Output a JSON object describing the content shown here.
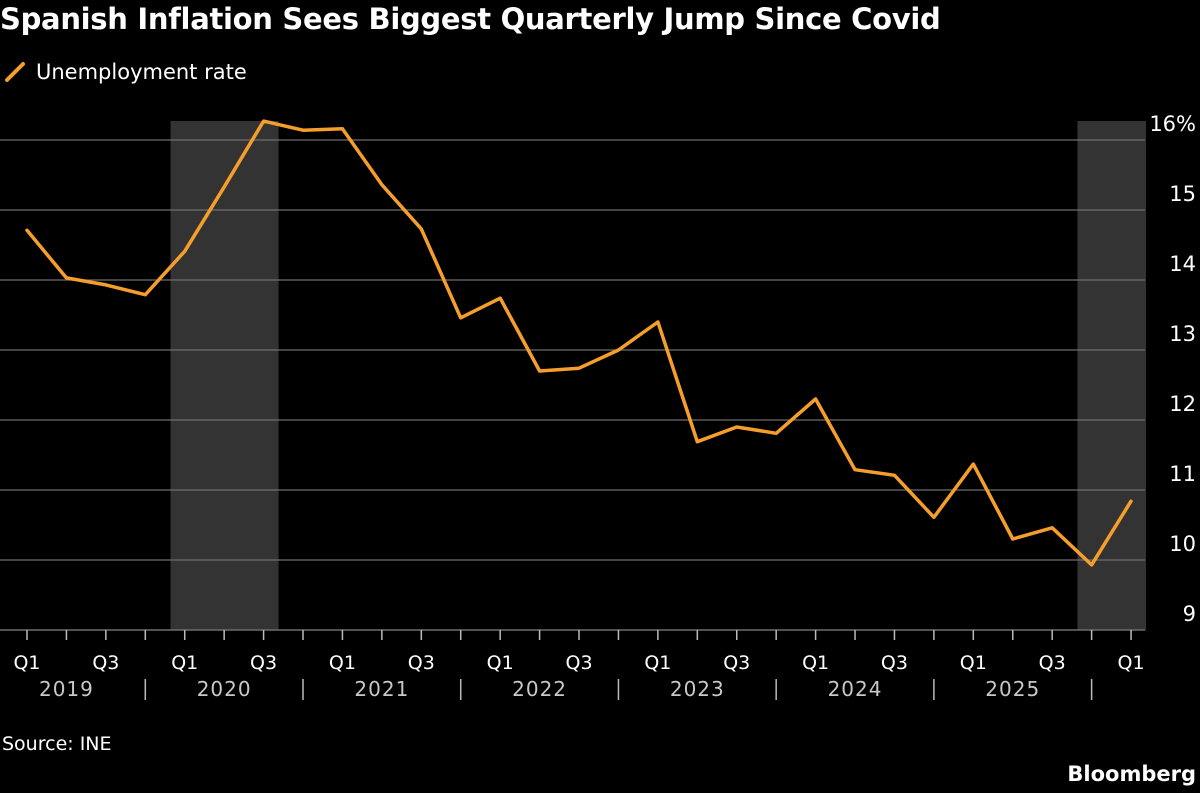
{
  "chart_data": {
    "type": "line",
    "title": "Spanish Inflation Sees Biggest Quarterly Jump Since Covid",
    "legend": [
      {
        "name": "Unemployment rate",
        "color": "#f59e2b"
      }
    ],
    "legend_placement": "top-left",
    "source": "Source: INE",
    "brand": "Bloomberg",
    "ylim": [
      9,
      16
    ],
    "y_ticks": [
      9,
      10,
      11,
      12,
      13,
      14,
      15,
      16
    ],
    "y_tick_labels": [
      "9",
      "10",
      "11",
      "12",
      "13",
      "14",
      "15",
      "16%"
    ],
    "y_axis_side": "right",
    "grid": true,
    "x": [
      "2019 Q1",
      "2019 Q2",
      "2019 Q3",
      "2019 Q4",
      "2020 Q1",
      "2020 Q2",
      "2020 Q3",
      "2020 Q4",
      "2021 Q1",
      "2021 Q2",
      "2021 Q3",
      "2021 Q4",
      "2022 Q1",
      "2022 Q2",
      "2022 Q3",
      "2022 Q4",
      "2023 Q1",
      "2023 Q2",
      "2023 Q3",
      "2023 Q4",
      "2024 Q1",
      "2024 Q2",
      "2024 Q3",
      "2024 Q4",
      "2025 Q1",
      "2025 Q2",
      "2025 Q3",
      "2025 Q4",
      "2026 Q1"
    ],
    "series": [
      {
        "name": "Unemployment rate",
        "color": "#f59e2b",
        "values": [
          14.71,
          14.03,
          13.93,
          13.79,
          14.41,
          15.33,
          16.27,
          16.14,
          16.16,
          15.36,
          14.73,
          13.46,
          13.74,
          12.7,
          12.74,
          13.0,
          13.4,
          11.69,
          11.9,
          11.81,
          12.3,
          11.29,
          11.21,
          10.61,
          11.37,
          10.3,
          10.46,
          9.93,
          10.84
        ]
      }
    ],
    "x_tick_labels": [
      {
        "at": "2019 Q1",
        "label": "Q1"
      },
      {
        "at": "2019 Q3",
        "label": "Q3"
      },
      {
        "at": "2020 Q1",
        "label": "Q1"
      },
      {
        "at": "2020 Q3",
        "label": "Q3"
      },
      {
        "at": "2021 Q1",
        "label": "Q1"
      },
      {
        "at": "2021 Q3",
        "label": "Q3"
      },
      {
        "at": "2022 Q1",
        "label": "Q1"
      },
      {
        "at": "2022 Q3",
        "label": "Q3"
      },
      {
        "at": "2023 Q1",
        "label": "Q1"
      },
      {
        "at": "2023 Q3",
        "label": "Q3"
      },
      {
        "at": "2024 Q1",
        "label": "Q1"
      },
      {
        "at": "2024 Q3",
        "label": "Q3"
      },
      {
        "at": "2025 Q1",
        "label": "Q1"
      },
      {
        "at": "2025 Q3",
        "label": "Q3"
      },
      {
        "at": "2026 Q1",
        "label": "Q1"
      }
    ],
    "year_labels": [
      "2019",
      "2020",
      "2021",
      "2022",
      "2023",
      "2024",
      "2025"
    ],
    "shaded_periods": [
      {
        "start": "2020 Q1",
        "end": "2020 Q3"
      },
      {
        "start": "2025 Q4",
        "end": "2026 Q1"
      }
    ],
    "colors": {
      "background": "#000000",
      "line": "#f59e2b",
      "shade": "#333333",
      "grid": "#6e6e6e",
      "text": "#ffffff",
      "year_text": "#c8c8c8"
    }
  }
}
